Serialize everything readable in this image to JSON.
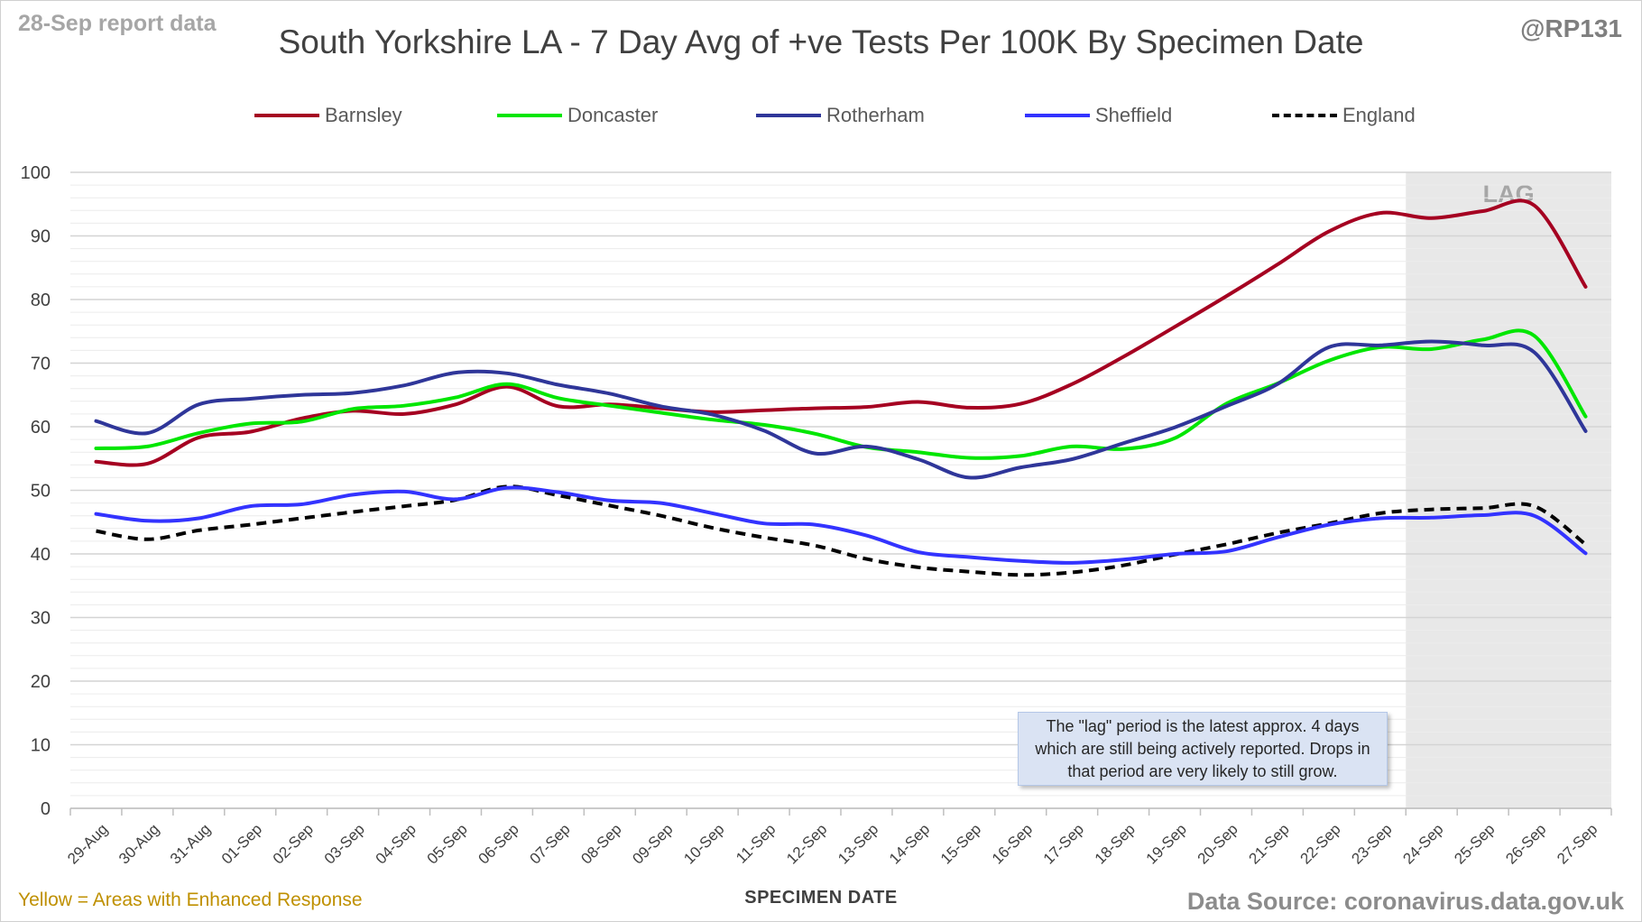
{
  "header": {
    "report_date": "28-Sep report data",
    "handle": "@RP131"
  },
  "footer": {
    "footnote": "Yellow = Areas with Enhanced Response",
    "source": "Data Source: coronavirus.data.gov.uk"
  },
  "annotation": {
    "lag_label": "LAG",
    "note": "The \"lag\" period is the latest approx. 4 days which are still being actively reported. Drops in that period are very likely to still grow."
  },
  "chart_data": {
    "type": "line",
    "title": "South Yorkshire LA - 7 Day Avg of +ve Tests Per 100K By Specimen Date",
    "xlabel": "SPECIMEN DATE",
    "ylabel": "",
    "ylim": [
      0,
      100
    ],
    "yticks": [
      0,
      10,
      20,
      30,
      40,
      50,
      60,
      70,
      80,
      90,
      100
    ],
    "grid": true,
    "legend_position": "top",
    "lag_period": [
      "24-Sep",
      "27-Sep"
    ],
    "categories": [
      "29-Aug",
      "30-Aug",
      "31-Aug",
      "01-Sep",
      "02-Sep",
      "03-Sep",
      "04-Sep",
      "05-Sep",
      "06-Sep",
      "07-Sep",
      "08-Sep",
      "09-Sep",
      "10-Sep",
      "11-Sep",
      "12-Sep",
      "13-Sep",
      "14-Sep",
      "15-Sep",
      "16-Sep",
      "17-Sep",
      "18-Sep",
      "19-Sep",
      "20-Sep",
      "21-Sep",
      "22-Sep",
      "23-Sep",
      "24-Sep",
      "25-Sep",
      "26-Sep",
      "27-Sep"
    ],
    "series": [
      {
        "name": "Barnsley",
        "color": "#a50021",
        "dashed": false,
        "values": [
          54.5,
          54.2,
          58.3,
          59.2,
          61.3,
          62.5,
          62.0,
          63.5,
          66.3,
          63.2,
          63.5,
          62.9,
          62.3,
          62.6,
          62.9,
          63.1,
          63.9,
          63.0,
          63.6,
          66.7,
          71.0,
          75.7,
          80.5,
          85.5,
          90.7,
          93.6,
          92.8,
          93.9,
          94.8,
          82.0
        ]
      },
      {
        "name": "Doncaster",
        "color": "#00e600",
        "dashed": false,
        "values": [
          56.6,
          56.9,
          59.0,
          60.5,
          60.8,
          62.8,
          63.3,
          64.6,
          66.7,
          64.5,
          63.3,
          62.2,
          61.1,
          60.3,
          58.9,
          56.8,
          56.0,
          55.1,
          55.4,
          56.9,
          56.5,
          58.2,
          63.6,
          66.8,
          70.4,
          72.5,
          72.2,
          73.7,
          74.3,
          61.6
        ]
      },
      {
        "name": "Rotherham",
        "color": "#2f3699",
        "dashed": false,
        "values": [
          60.9,
          59.0,
          63.5,
          64.4,
          65.0,
          65.3,
          66.5,
          68.5,
          68.4,
          66.6,
          65.2,
          63.2,
          61.9,
          59.4,
          55.8,
          56.9,
          54.9,
          52.0,
          53.6,
          54.9,
          57.4,
          59.9,
          63.2,
          66.7,
          72.5,
          72.8,
          73.4,
          72.8,
          71.7,
          59.3
        ]
      },
      {
        "name": "Sheffield",
        "color": "#3333ff",
        "dashed": false,
        "values": [
          46.3,
          45.2,
          45.6,
          47.5,
          47.8,
          49.3,
          49.8,
          48.6,
          50.4,
          49.7,
          48.4,
          48.0,
          46.4,
          44.8,
          44.6,
          42.9,
          40.3,
          39.5,
          38.9,
          38.6,
          39.1,
          40.0,
          40.4,
          42.6,
          44.6,
          45.6,
          45.7,
          46.1,
          46.0,
          40.1
        ]
      },
      {
        "name": "England",
        "color": "#000000",
        "dashed": true,
        "values": [
          43.6,
          42.3,
          43.7,
          44.6,
          45.6,
          46.6,
          47.5,
          48.5,
          50.6,
          49.2,
          47.6,
          46.0,
          44.1,
          42.6,
          41.3,
          39.2,
          37.9,
          37.2,
          36.7,
          37.1,
          38.2,
          39.9,
          41.5,
          43.3,
          44.8,
          46.4,
          47.0,
          47.2,
          47.5,
          41.5
        ]
      }
    ]
  }
}
